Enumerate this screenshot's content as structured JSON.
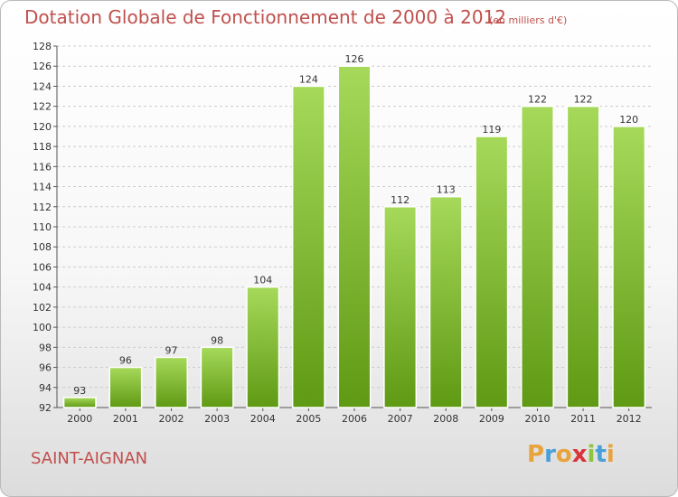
{
  "title": "Dotation Globale de Fonctionnement de 2000 à 2012",
  "subtitle": "(en milliers d'€)",
  "commune": "SAINT-AIGNAN",
  "logo": {
    "text": "Proxiti",
    "letters": [
      "P",
      "r",
      "o",
      "x",
      "i",
      "t",
      "i"
    ],
    "colors": [
      "#e8a33d",
      "#4a9fd8",
      "#e8a33d",
      "#d9343a",
      "#8cc63f",
      "#4a9fd8",
      "#e8a33d"
    ]
  },
  "colors": {
    "title": "#c0504d",
    "bar_light": "#a6d95a",
    "bar_dark": "#5f9a14",
    "grid": "#cccccc"
  },
  "chart_data": {
    "type": "bar",
    "title": "Dotation Globale de Fonctionnement de 2000 à 2012",
    "subtitle": "(en milliers d'€)",
    "categories": [
      "2000",
      "2001",
      "2002",
      "2003",
      "2004",
      "2005",
      "2006",
      "2007",
      "2008",
      "2009",
      "2010",
      "2011",
      "2012"
    ],
    "values": [
      93,
      96,
      97,
      98,
      104,
      124,
      126,
      112,
      113,
      119,
      122,
      122,
      120
    ],
    "ylim": [
      92,
      128
    ],
    "yticks": [
      92,
      94,
      96,
      98,
      100,
      102,
      104,
      106,
      108,
      110,
      112,
      114,
      116,
      118,
      120,
      122,
      124,
      126,
      128
    ],
    "grid": true,
    "xlabel": "",
    "ylabel": ""
  }
}
